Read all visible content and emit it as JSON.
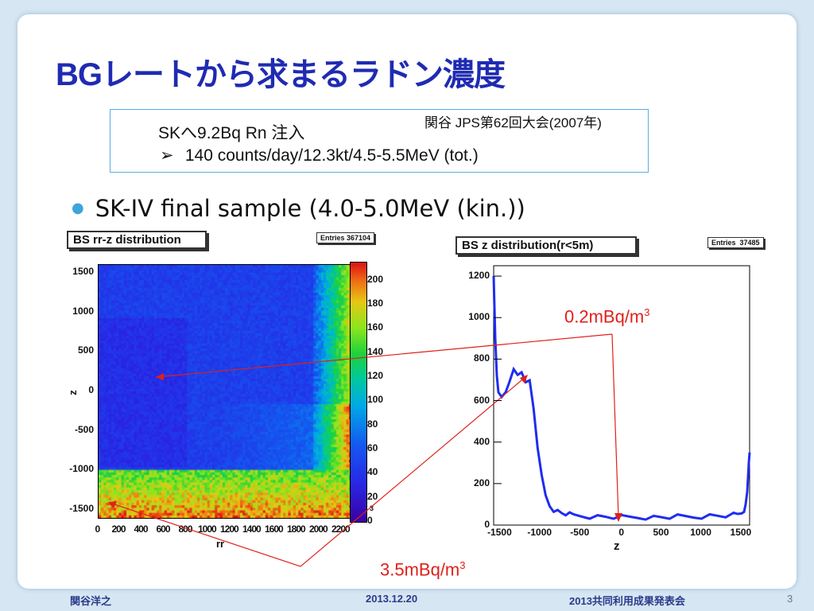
{
  "title": "BGレートから求まるラドン濃度",
  "info_box": {
    "line1": "SKへ9.2Bq Rn 注入",
    "line2_bullet": "➢",
    "line2": "140 counts/day/12.3kt/4.5-5.5MeV (tot.)"
  },
  "reference": "関谷 JPS第62回大会(2007年)",
  "bullet": "SK-IV final sample (4.0-5.0MeV (kin.))",
  "left_plot": {
    "title": "BS rr-z distribution",
    "entries": "Entries 367104",
    "yticks": [
      "1500",
      "1000",
      "500",
      "0",
      "-500",
      "-1000",
      "-1500"
    ],
    "xticks": [
      "0",
      "200",
      "400",
      "600",
      "800",
      "1000",
      "1200",
      "1400",
      "1600",
      "1800",
      "2000",
      "2200"
    ],
    "cbticks": [
      "200",
      "180",
      "160",
      "140",
      "120",
      "100",
      "80",
      "60",
      "40",
      "20",
      "0"
    ],
    "cb_exp": "3",
    "xlabel": "rr",
    "ylabel": "z"
  },
  "right_plot": {
    "title": "BS z distribution(r<5m)",
    "entries": "Entries  37485",
    "yticks": [
      "1200",
      "1000",
      "800",
      "600",
      "400",
      "200",
      "0"
    ],
    "xticks": [
      "-1500",
      "-1000",
      "-500",
      "0",
      "500",
      "1000",
      "1500"
    ],
    "xlabel": "z"
  },
  "chart_data": [
    {
      "type": "heatmap",
      "title": "BS rr-z distribution",
      "xlabel": "rr",
      "ylabel": "z",
      "xlim": [
        0,
        2200
      ],
      "ylim": [
        -1600,
        1600
      ],
      "colorbar_range": [
        0,
        210
      ],
      "description_values": {
        "bottom_band_z_below": -900,
        "outer_wall_rr_above": 1950
      }
    },
    {
      "type": "line",
      "title": "BS z distribution(r<5m)",
      "xlabel": "z",
      "xlim": [
        -1600,
        1600
      ],
      "ylim": [
        0,
        1250
      ],
      "x": [
        -1600,
        -1580,
        -1560,
        -1540,
        -1500,
        -1450,
        -1400,
        -1350,
        -1300,
        -1250,
        -1200,
        -1150,
        -1100,
        -1050,
        -1000,
        -950,
        -900,
        -850,
        -800,
        -750,
        -700,
        -650,
        -600,
        -500,
        -400,
        -300,
        -200,
        -100,
        0,
        100,
        200,
        300,
        400,
        500,
        600,
        700,
        800,
        900,
        1000,
        1100,
        1200,
        1300,
        1400,
        1450,
        1500,
        1530,
        1550,
        1570,
        1590,
        1600
      ],
      "y": [
        1200,
        900,
        720,
        640,
        610,
        640,
        700,
        740,
        720,
        740,
        700,
        690,
        560,
        380,
        230,
        140,
        95,
        75,
        65,
        58,
        55,
        50,
        48,
        45,
        42,
        40,
        40,
        38,
        37,
        37,
        38,
        38,
        37,
        38,
        38,
        40,
        40,
        40,
        42,
        44,
        45,
        45,
        48,
        50,
        60,
        75,
        100,
        160,
        300,
        350
      ]
    }
  ],
  "annotations": {
    "upper": "0.2mBq/m",
    "upper_sup": "3",
    "lower": "3.5mBq/m",
    "lower_sup": "3"
  },
  "colors": {
    "title": "#1f2bb2",
    "annotation": "#e0201a",
    "histogram": "#1f2cf0",
    "box_border": "#5aaee0"
  },
  "footer": {
    "author": "関谷洋之",
    "date": "2013.12.20",
    "event": "2013共同利用成果発表会",
    "page": "3"
  }
}
